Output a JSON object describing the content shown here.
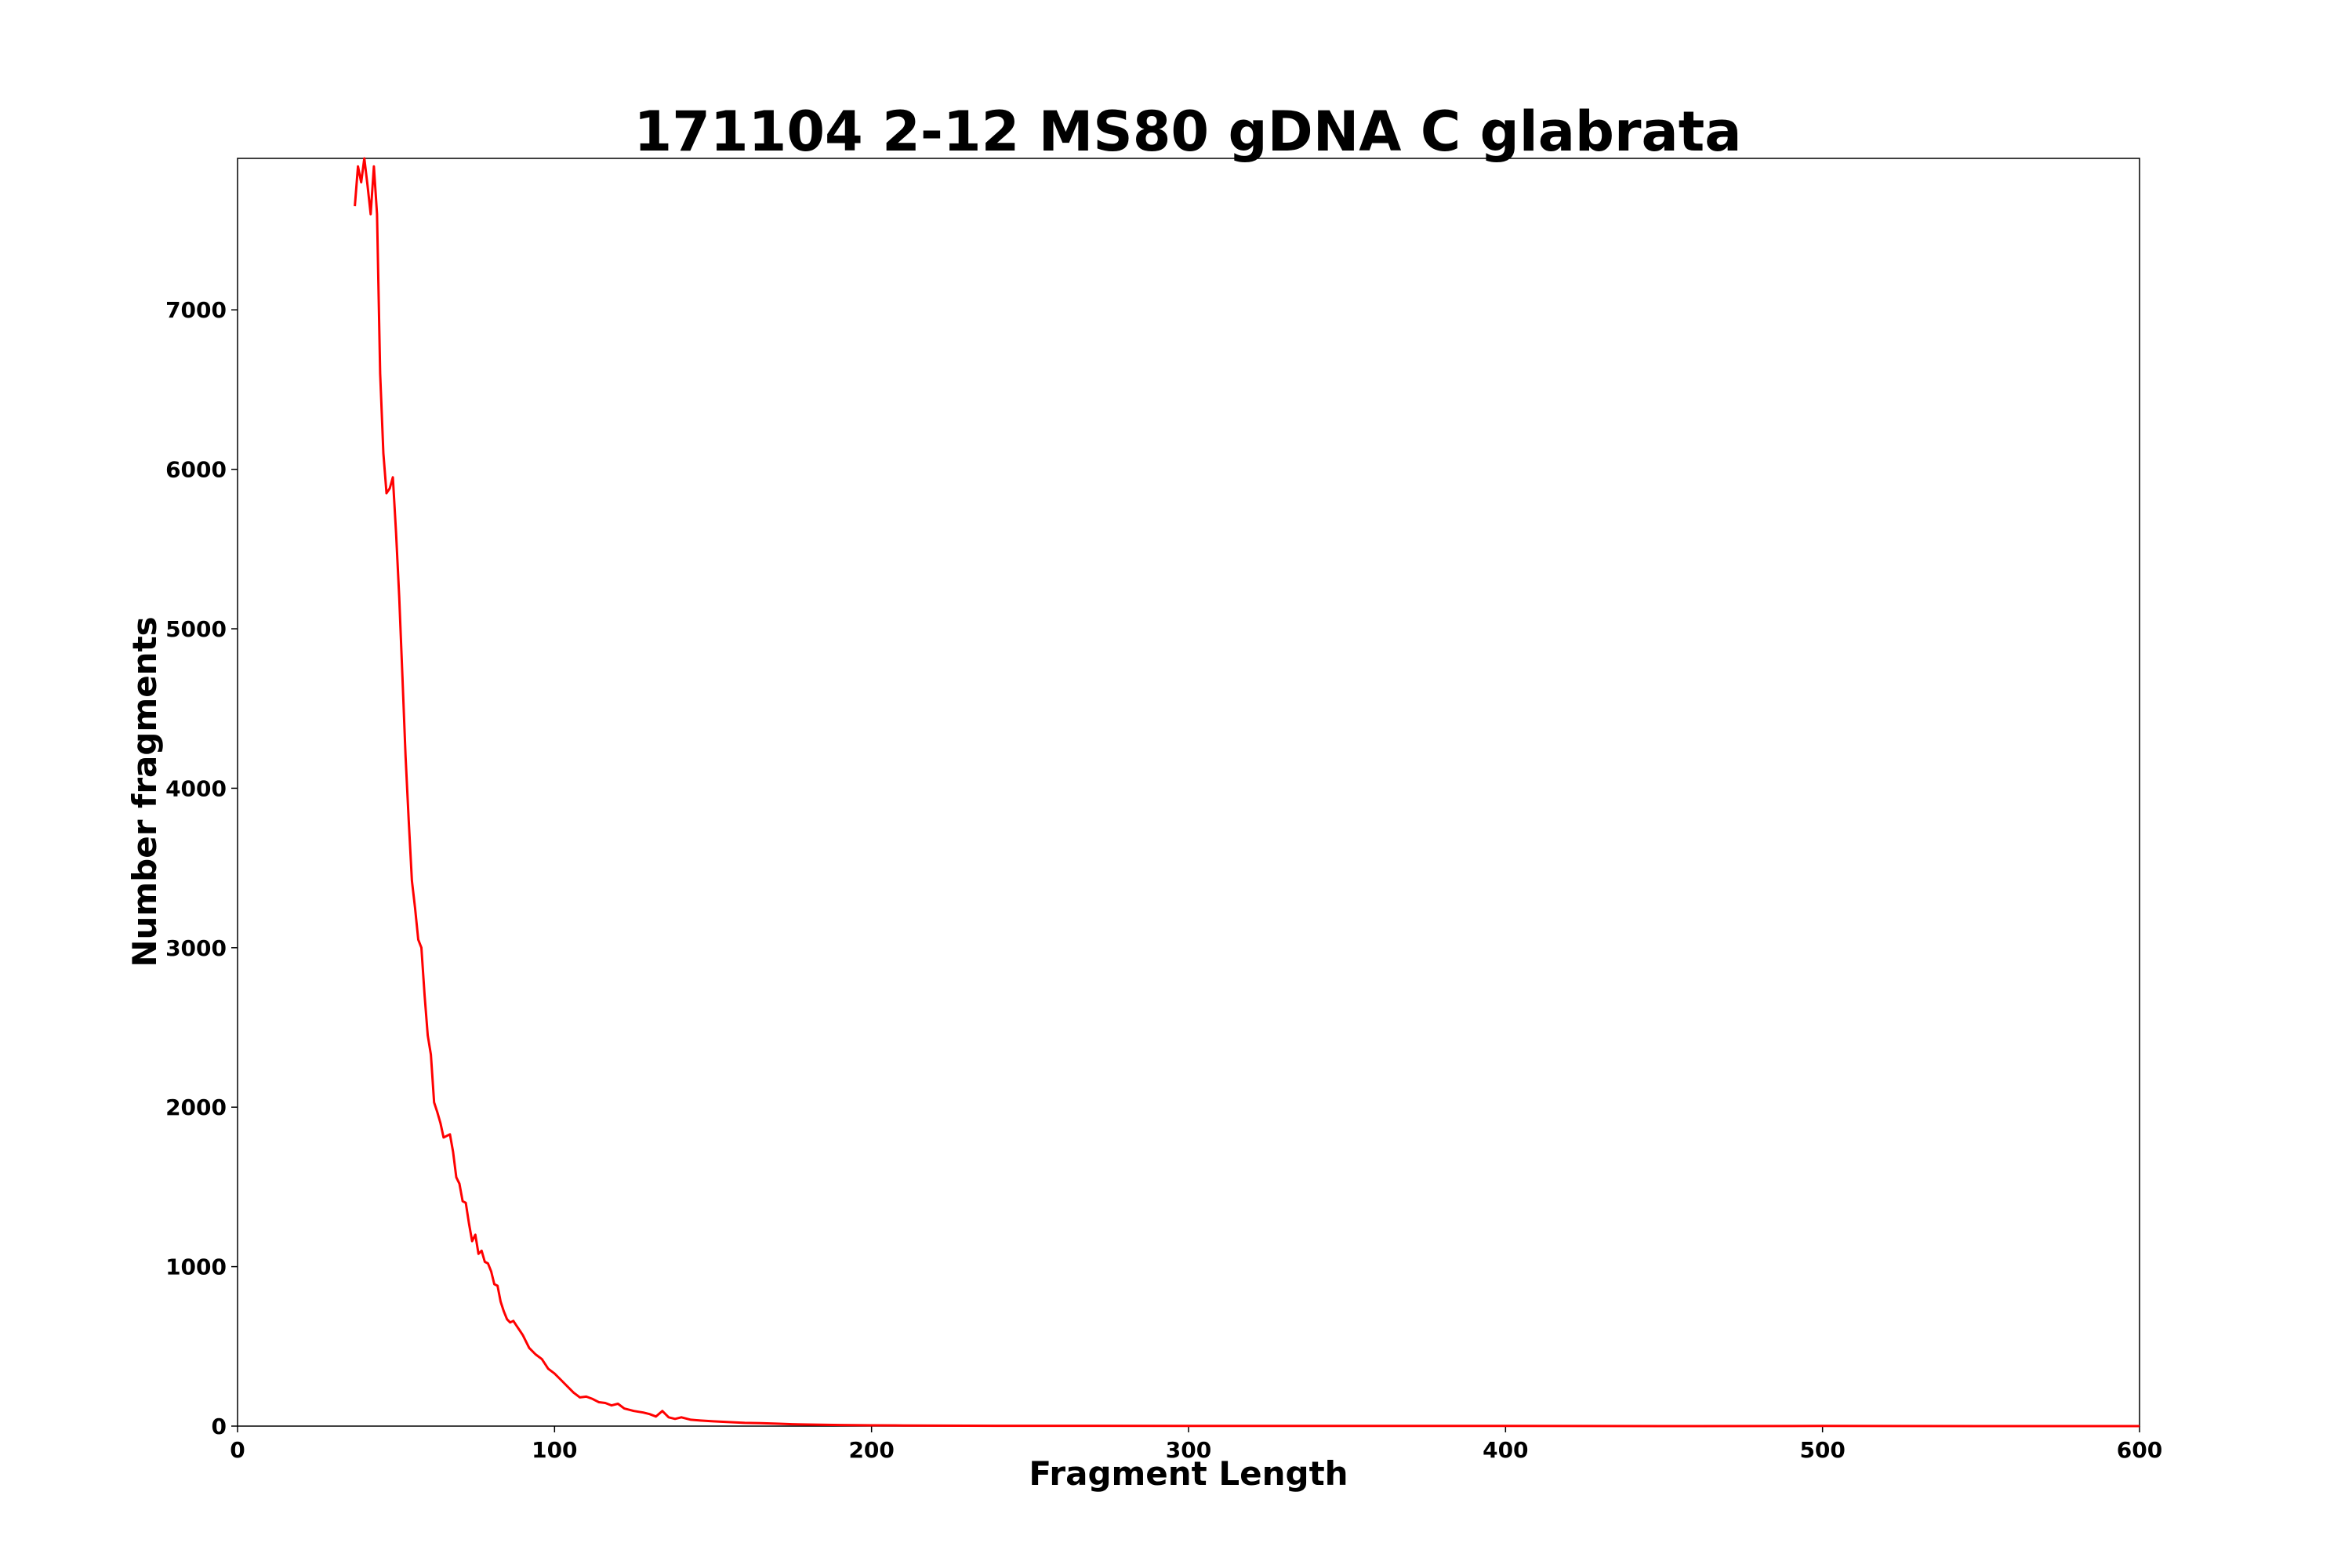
{
  "chart_data": {
    "type": "line",
    "title": "171104 2-12 MS80 gDNA C glabrata",
    "xlabel": "Fragment Length",
    "ylabel": "Number fragments",
    "xlim": [
      0,
      600
    ],
    "ylim": [
      0,
      7950
    ],
    "xticks": [
      0,
      100,
      200,
      300,
      400,
      500,
      600
    ],
    "yticks": [
      0,
      1000,
      2000,
      3000,
      4000,
      5000,
      6000,
      7000
    ],
    "grid": false,
    "line_color": "#ff0000",
    "series": [
      {
        "x": [
          37,
          38,
          39,
          40,
          41,
          42,
          43,
          44,
          45,
          46,
          47,
          48,
          49,
          50,
          51,
          52,
          53,
          54,
          55,
          56,
          57,
          58,
          59,
          60,
          61,
          62,
          63,
          64,
          65,
          66,
          67,
          68,
          69,
          70,
          71,
          72,
          73,
          74,
          75,
          76,
          77,
          78,
          79,
          80,
          81,
          82,
          83,
          84,
          85,
          86,
          87,
          88,
          89,
          90,
          92,
          94,
          96,
          98,
          100,
          102,
          104,
          106,
          108,
          110,
          112,
          114,
          116,
          118,
          120,
          122,
          125,
          128,
          130,
          132,
          134,
          136,
          138,
          140,
          143,
          146,
          150,
          155,
          160,
          165,
          170,
          175,
          180,
          190,
          200,
          210,
          220,
          240,
          260,
          300,
          350,
          400,
          450,
          500,
          550,
          600
        ],
        "y": [
          7650,
          7900,
          7800,
          7950,
          7780,
          7600,
          7900,
          7600,
          6600,
          6100,
          5850,
          5880,
          5950,
          5600,
          5200,
          4700,
          4200,
          3800,
          3420,
          3250,
          3050,
          3000,
          2700,
          2450,
          2330,
          2030,
          1970,
          1900,
          1810,
          1820,
          1830,
          1720,
          1560,
          1520,
          1410,
          1400,
          1270,
          1160,
          1200,
          1080,
          1100,
          1030,
          1020,
          970,
          890,
          880,
          780,
          720,
          670,
          650,
          660,
          630,
          600,
          570,
          490,
          450,
          420,
          360,
          330,
          290,
          250,
          210,
          180,
          185,
          170,
          150,
          145,
          130,
          140,
          110,
          95,
          85,
          75,
          60,
          95,
          55,
          45,
          55,
          40,
          35,
          30,
          25,
          20,
          18,
          15,
          12,
          10,
          7,
          5,
          4,
          3,
          2,
          2,
          1,
          1,
          1,
          0,
          1,
          0,
          0
        ]
      }
    ]
  }
}
